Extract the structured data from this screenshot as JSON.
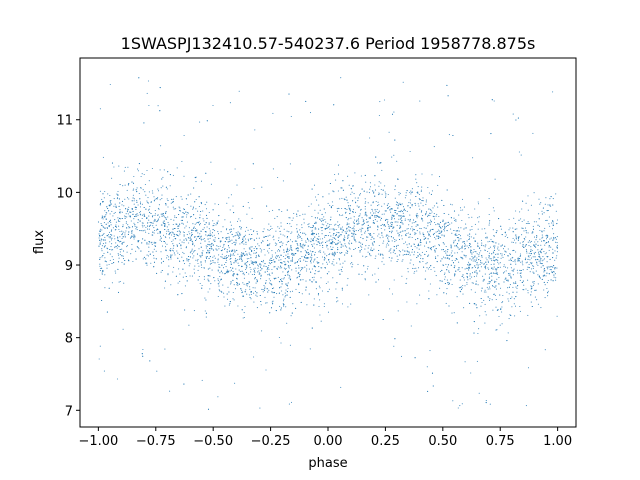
{
  "chart_data": {
    "type": "scatter",
    "title": "1SWASPJ132410.57-540237.6 Period 1958778.875s",
    "xlabel": "phase",
    "ylabel": "flux",
    "xlim": [
      -1.08,
      1.08
    ],
    "ylim": [
      6.77,
      11.85
    ],
    "xticks": [
      -1.0,
      -0.75,
      -0.5,
      -0.25,
      0.0,
      0.25,
      0.5,
      0.75,
      1.0
    ],
    "xtick_labels": [
      "−1.00",
      "−0.75",
      "−0.50",
      "−0.25",
      "0.00",
      "0.25",
      "0.50",
      "0.75",
      "1.00"
    ],
    "yticks": [
      7,
      8,
      9,
      10,
      11
    ],
    "ytick_labels": [
      "7",
      "8",
      "9",
      "10",
      "11"
    ],
    "grid": false,
    "legend": "none",
    "point_color": "#1f77b4",
    "series": [
      {
        "x": [
          -1.0,
          -0.95,
          -0.9,
          -0.85,
          -0.8,
          -0.75,
          -0.7,
          -0.65,
          -0.6,
          -0.55,
          -0.5,
          -0.45,
          -0.4,
          -0.35,
          -0.3,
          -0.25,
          -0.2,
          -0.15,
          -0.1,
          -0.05,
          0.0,
          0.05,
          0.1,
          0.15,
          0.2,
          0.25,
          0.3,
          0.35,
          0.4,
          0.45,
          0.5,
          0.55,
          0.6,
          0.65,
          0.7,
          0.75,
          0.8,
          0.85,
          0.9,
          0.95,
          1.0
        ],
        "y": [
          9.35,
          9.4,
          9.5,
          9.55,
          9.6,
          9.55,
          9.5,
          9.45,
          9.4,
          9.3,
          9.2,
          9.1,
          9.05,
          9.0,
          8.95,
          9.0,
          9.05,
          9.1,
          9.15,
          9.2,
          9.3,
          9.35,
          9.45,
          9.5,
          9.55,
          9.6,
          9.55,
          9.5,
          9.45,
          9.4,
          9.3,
          9.2,
          9.1,
          9.05,
          9.0,
          8.95,
          9.0,
          9.05,
          9.1,
          9.15,
          9.2
        ]
      }
    ]
  }
}
